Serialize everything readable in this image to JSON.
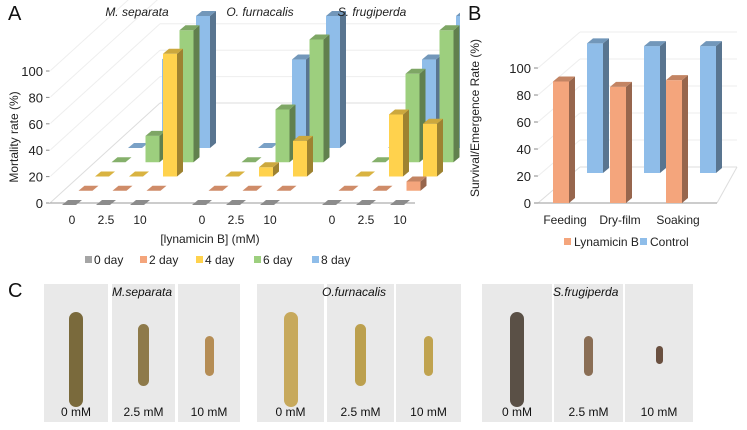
{
  "panels": {
    "a": "A",
    "b": "B",
    "c": "C"
  },
  "chart_data": [
    {
      "type": "bar",
      "subtype": "3d-clustered-depth",
      "ylabel": "Mortality rate (%)",
      "xlabel": "[lynamicin B] (mM)",
      "ylim": [
        0,
        100
      ],
      "yticks": [
        "0",
        "20",
        "40",
        "60",
        "80",
        "100"
      ],
      "groups": [
        "M. separata",
        "O. furnacalis",
        "S. frugiperda"
      ],
      "categories": [
        "0",
        "2.5",
        "10"
      ],
      "series_names": [
        "0 day",
        "2 day",
        "4 day",
        "6 day",
        "8 day"
      ],
      "series_colors": [
        "#a5a5a5",
        "#f4a57c",
        "#ffd24d",
        "#9dcf7e",
        "#8fbde9"
      ],
      "legend_position": "bottom",
      "data": {
        "M. separata": {
          "0 day": [
            0,
            0,
            0
          ],
          "2 day": [
            0,
            0,
            0
          ],
          "4 day": [
            0,
            0,
            93
          ],
          "6 day": [
            0,
            20,
            100
          ],
          "8 day": [
            0,
            67,
            100
          ]
        },
        "O. furnacalis": {
          "0 day": [
            0,
            0,
            0
          ],
          "2 day": [
            0,
            0,
            0
          ],
          "4 day": [
            0,
            7,
            27
          ],
          "6 day": [
            0,
            40,
            93
          ],
          "8 day": [
            0,
            67,
            100
          ]
        },
        "S. frugiperda": {
          "0 day": [
            0,
            0,
            0
          ],
          "2 day": [
            0,
            0,
            7
          ],
          "4 day": [
            0,
            47,
            40
          ],
          "6 day": [
            0,
            67,
            100
          ],
          "8 day": [
            0,
            67,
            100
          ]
        }
      }
    },
    {
      "type": "bar",
      "subtype": "3d-clustered-depth",
      "ylabel": "Survival/Emergence  Rate (%)",
      "xlabel": "",
      "ylim": [
        0,
        100
      ],
      "yticks": [
        "0",
        "20",
        "40",
        "60",
        "80",
        "100"
      ],
      "categories": [
        "Feeding",
        "Dry-film",
        "Soaking"
      ],
      "series": [
        {
          "name": "Lynamicin B",
          "color": "#f4a57c",
          "values": [
            90,
            86,
            91
          ]
        },
        {
          "name": "Control",
          "color": "#8fbde9",
          "values": [
            96,
            94,
            94
          ]
        }
      ],
      "legend_position": "bottom"
    }
  ],
  "photos": {
    "groups": [
      {
        "species": "M.separata",
        "labels": [
          "0 mM",
          "2.5 mM",
          "10 mM"
        ],
        "sizes": [
          "large",
          "medium",
          "small"
        ]
      },
      {
        "species": "O.furnacalis",
        "labels": [
          "0 mM",
          "2.5 mM",
          "10 mM"
        ],
        "sizes": [
          "large",
          "medium",
          "small"
        ]
      },
      {
        "species": "S.frugiperda",
        "labels": [
          "0 mM",
          "2.5 mM",
          "10 mM"
        ],
        "sizes": [
          "large",
          "small",
          "tiny"
        ]
      }
    ]
  }
}
